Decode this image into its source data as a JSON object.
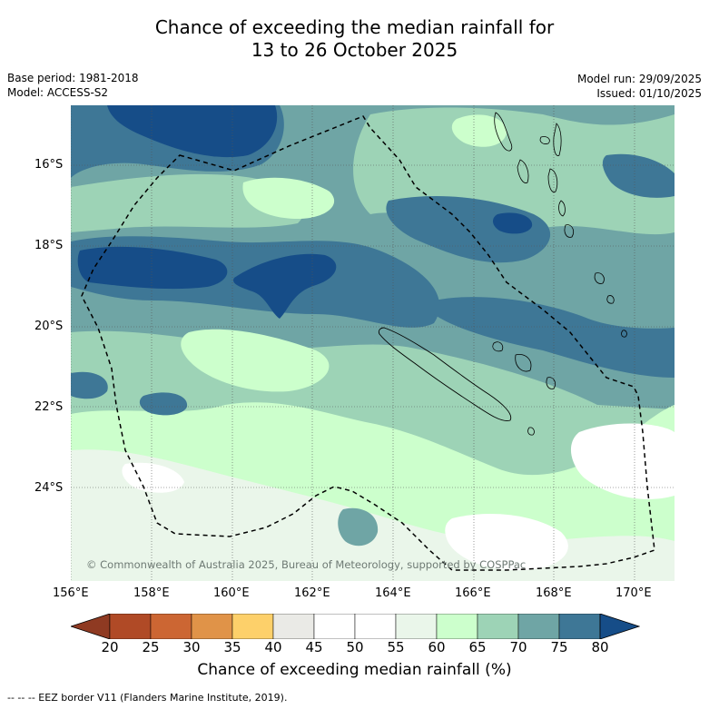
{
  "title": {
    "line1": "Chance of exceeding the median rainfall for",
    "line2": "13 to 26 October 2025"
  },
  "meta": {
    "base_period": "Base period: 1981-2018",
    "model": "Model: ACCESS-S2",
    "model_run": "Model run: 29/09/2025",
    "issued": "Issued: 01/10/2025"
  },
  "axes": {
    "lat_labels": [
      "16°S",
      "18°S",
      "20°S",
      "22°S",
      "24°S"
    ],
    "lon_labels": [
      "156°E",
      "158°E",
      "160°E",
      "162°E",
      "164°E",
      "166°E",
      "168°E",
      "170°E"
    ]
  },
  "copyright": "© Commonwealth of Australia 2025, Bureau of Meteorology, supported by COSPPac",
  "colorbar": {
    "title": "Chance of exceeding median rainfall (%)",
    "ticks": [
      "20",
      "25",
      "30",
      "35",
      "40",
      "45",
      "50",
      "55",
      "60",
      "65",
      "70",
      "75",
      "80"
    ],
    "colors": [
      "#8f3a22",
      "#b04a26",
      "#cc6633",
      "#e09348",
      "#fdd06a",
      "#eaeae6",
      "#ffffff",
      "#ffffff",
      "#eaf6ea",
      "#ccffcc",
      "#9dd3b6",
      "#6fa5a5",
      "#3e7796",
      "#164d88"
    ]
  },
  "footer": "-- -- -- EEZ border V11 (Flanders Marine Institute, 2019)."
}
